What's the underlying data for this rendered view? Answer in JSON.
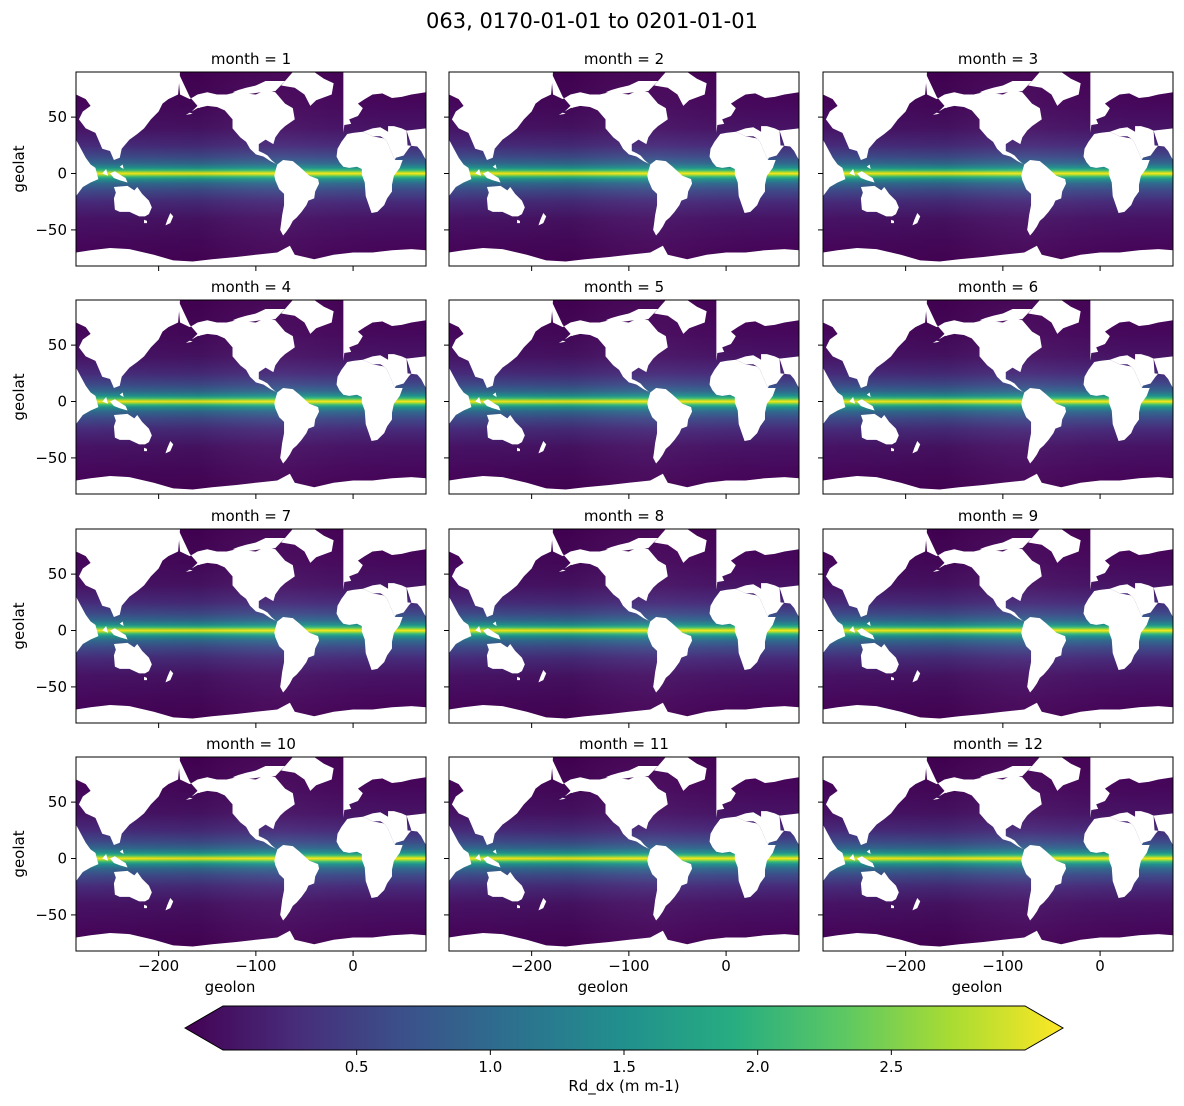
{
  "figure": {
    "title": "063, 0170-01-01 to 0201-01-01"
  },
  "chart_data": {
    "type": "heatmap",
    "variable": "Rd_dx",
    "colormap": "viridis",
    "facet_variable": "month",
    "panels": [
      {
        "title": "month = 1"
      },
      {
        "title": "month = 2"
      },
      {
        "title": "month = 3"
      },
      {
        "title": "month = 4"
      },
      {
        "title": "month = 5"
      },
      {
        "title": "month = 6"
      },
      {
        "title": "month = 7"
      },
      {
        "title": "month = 8"
      },
      {
        "title": "month = 9"
      },
      {
        "title": "month = 10"
      },
      {
        "title": "month = 11"
      },
      {
        "title": "month = 12"
      }
    ],
    "xlabel": "geolon",
    "ylabel": "geolat",
    "xlim": [
      -285,
      75
    ],
    "ylim": [
      -82,
      90
    ],
    "xticks": [
      -200,
      -100,
      0
    ],
    "xtick_labels": [
      "−200",
      "−100",
      "0"
    ],
    "yticks": [
      50,
      0,
      -50
    ],
    "ytick_labels": [
      "50",
      "0",
      "−50"
    ],
    "colorbar": {
      "label": "Rd_dx (m m-1)",
      "vmin": 0.0,
      "vmax": 3.0,
      "extend": "both",
      "ticks": [
        0.5,
        1.0,
        1.5,
        2.0,
        2.5
      ],
      "tick_labels": [
        "0.5",
        "1.0",
        "1.5",
        "2.0",
        "2.5"
      ],
      "colors": [
        "#440154",
        "#472c7a",
        "#3b518b",
        "#2c718e",
        "#21908d",
        "#27ad81",
        "#5cc863",
        "#aadc32",
        "#fde725"
      ]
    },
    "land_color": "#ffffff"
  }
}
